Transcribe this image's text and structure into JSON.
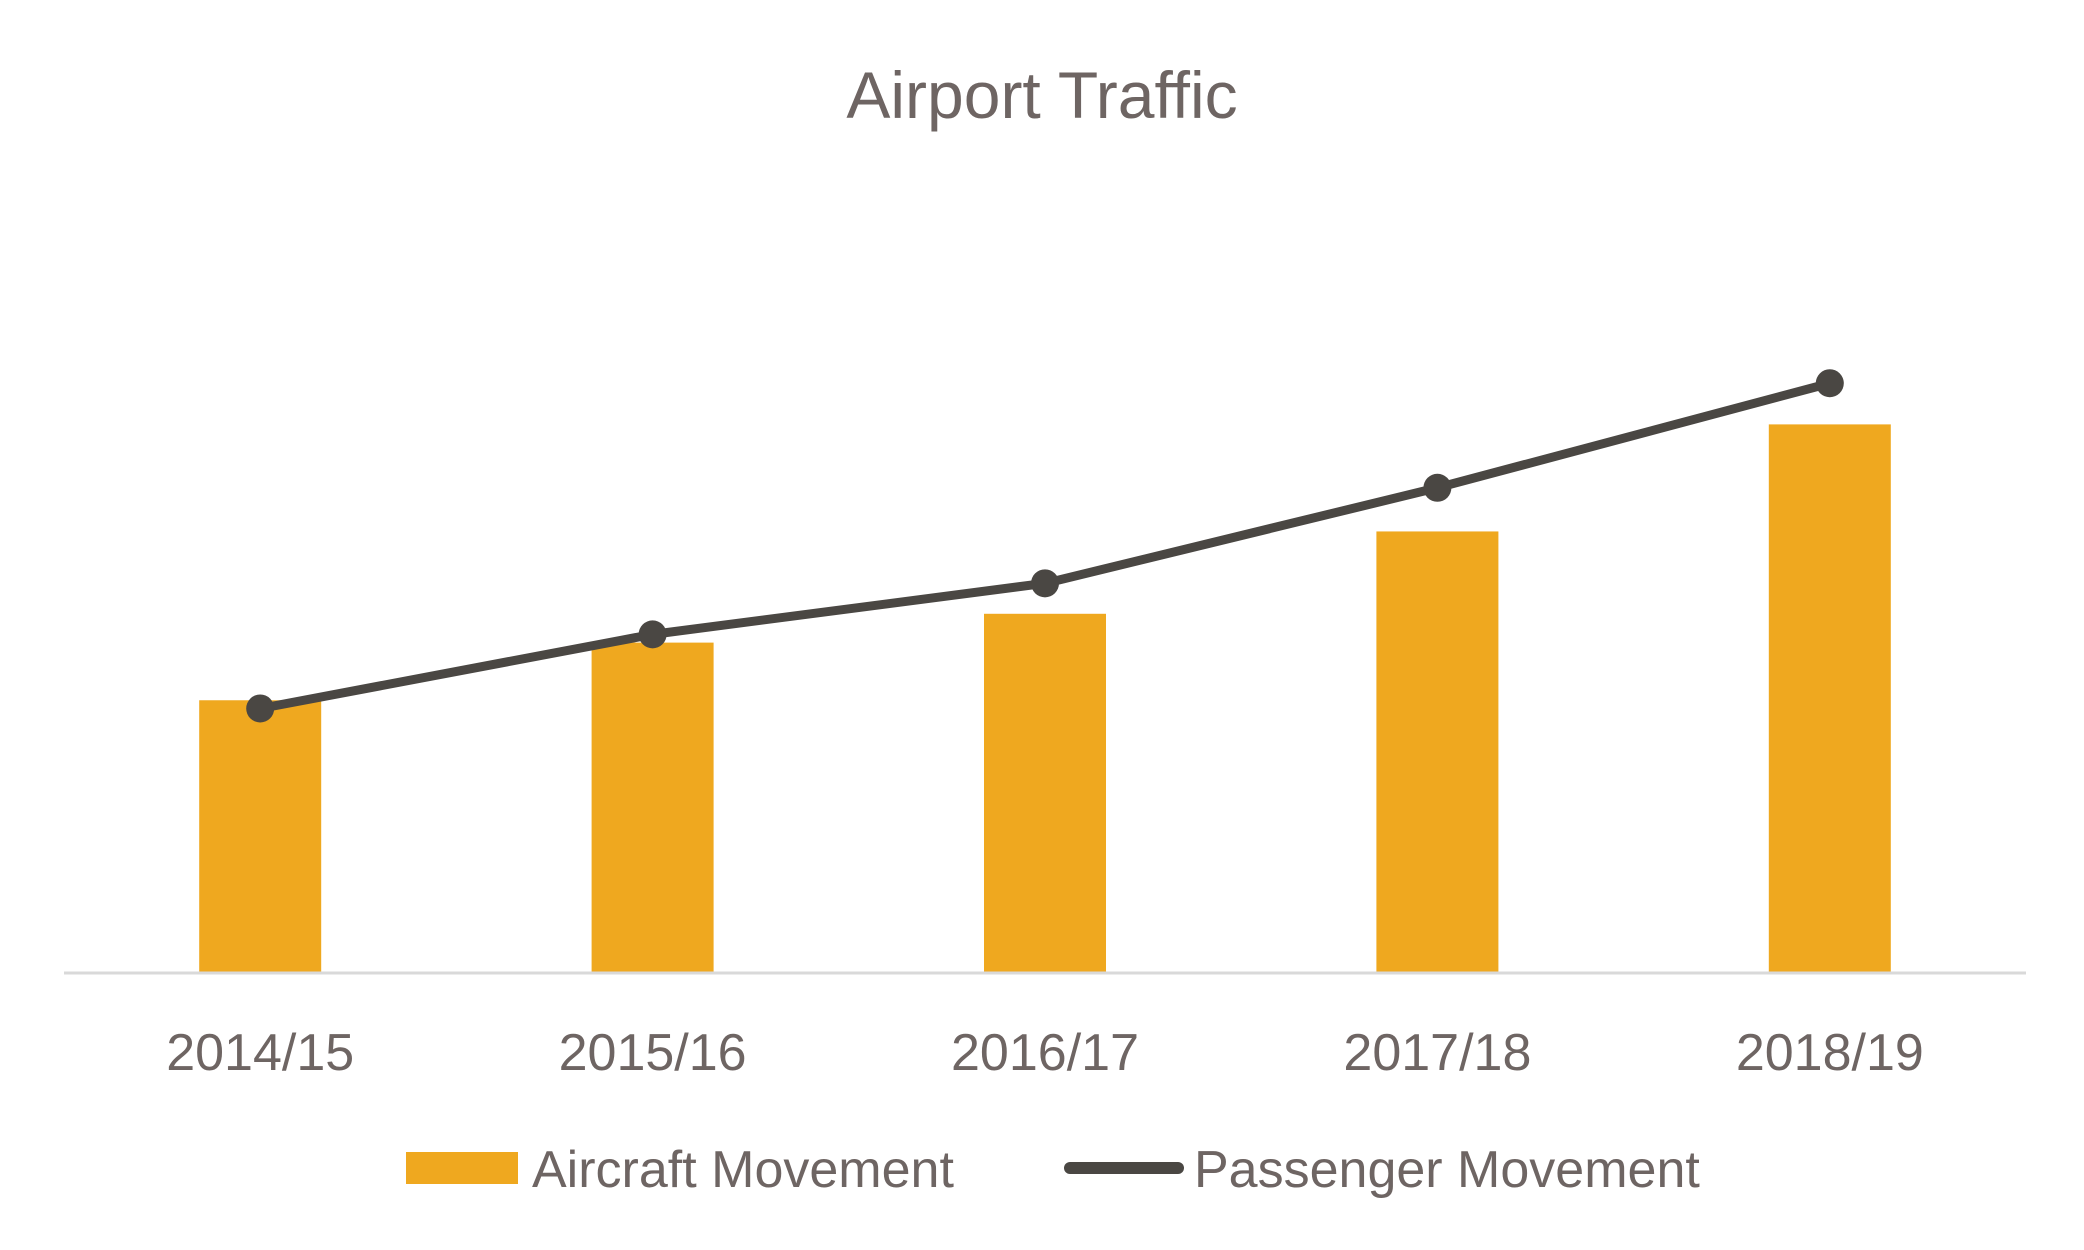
{
  "chart_data": {
    "type": "bar",
    "title": "Airport Traffic",
    "xlabel": "",
    "ylabel": "",
    "categories": [
      "2014/15",
      "2015/16",
      "2016/17",
      "2017/18",
      "2018/19"
    ],
    "series": [
      {
        "name": "Aircraft Movement",
        "type": "bar",
        "values": [
          3.3,
          4.0,
          4.35,
          5.35,
          6.65
        ]
      },
      {
        "name": "Passenger Movement",
        "type": "line",
        "values": [
          3.2,
          4.1,
          4.72,
          5.88,
          7.15
        ]
      }
    ],
    "ylim": [
      0,
      9.8
    ],
    "grid": false,
    "legend_position": "bottom",
    "colors": {
      "bar": "#efa81f",
      "line": "#4a4743",
      "axis": "#d9d9d9",
      "text": "#6e6563"
    }
  }
}
